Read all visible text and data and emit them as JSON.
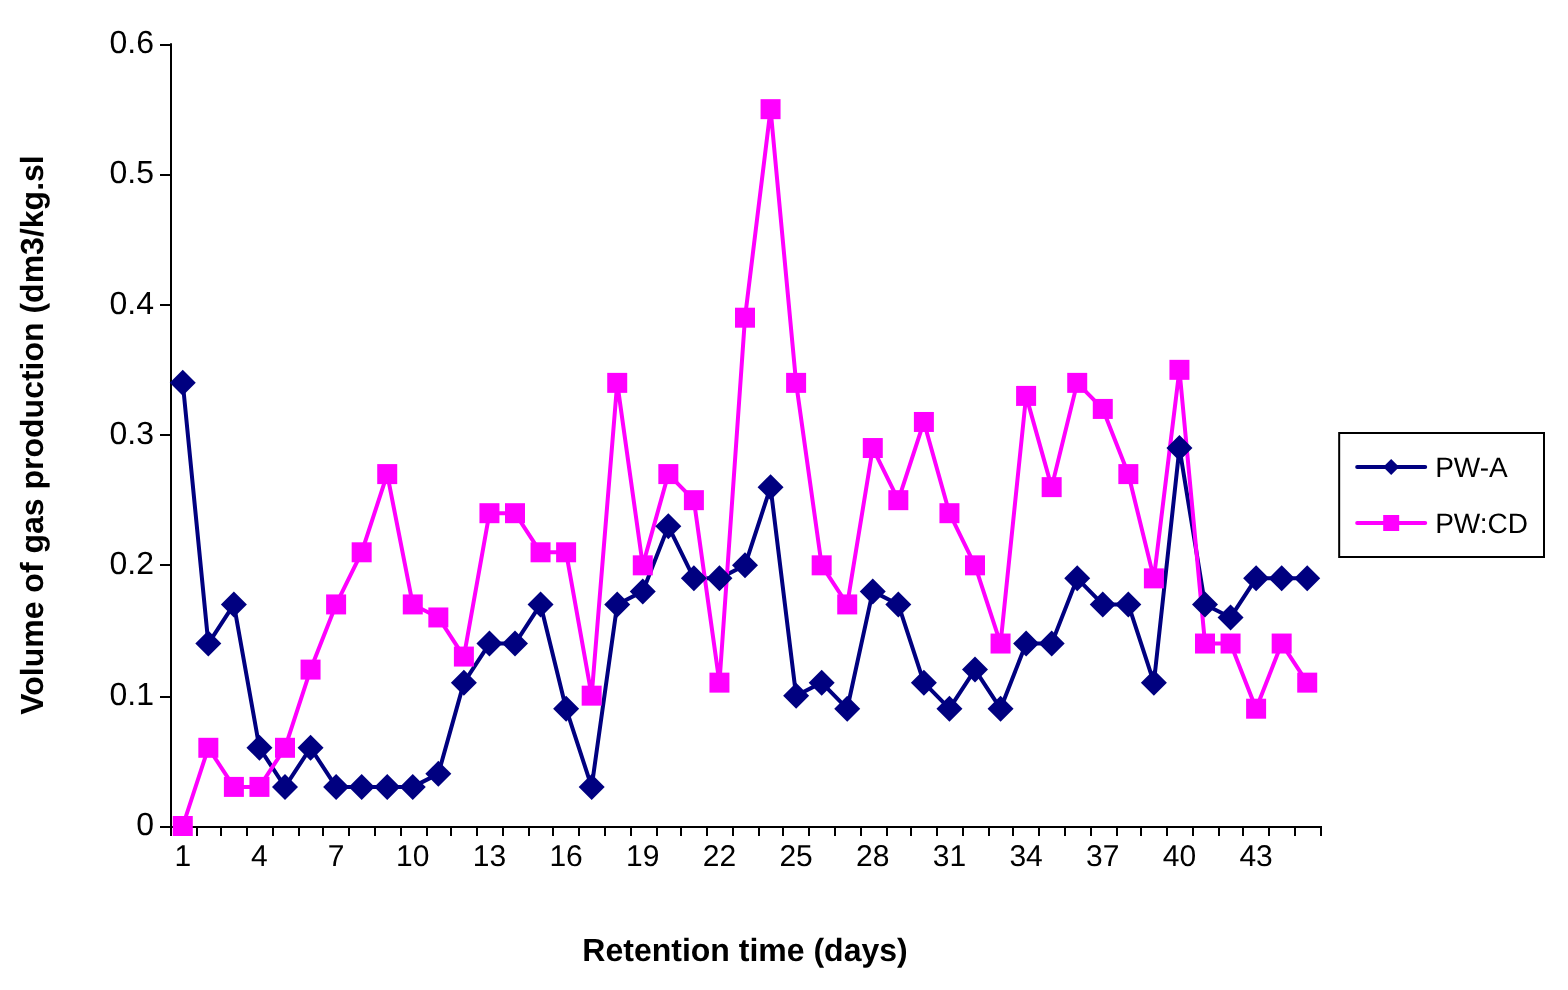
{
  "chart_data": {
    "type": "line",
    "xlabel": "Retention time (days)",
    "ylabel": "Volume of gas production (dm3/kg.sl",
    "categories": [
      "1",
      null,
      null,
      "4",
      null,
      null,
      "7",
      null,
      null,
      "10",
      null,
      null,
      "13",
      null,
      null,
      "16",
      null,
      null,
      "19",
      null,
      null,
      "22",
      null,
      null,
      "25",
      null,
      null,
      "28",
      null,
      null,
      "31",
      null,
      null,
      "34",
      null,
      null,
      "37",
      null,
      null,
      "40",
      null,
      null,
      "43",
      null,
      null
    ],
    "series": [
      {
        "name": "PW-A",
        "color": "#000080",
        "marker": "diamond",
        "values": [
          0.34,
          0.14,
          0.17,
          0.06,
          0.03,
          0.06,
          0.03,
          0.03,
          0.03,
          0.03,
          0.04,
          0.11,
          0.14,
          0.14,
          0.17,
          0.09,
          0.03,
          0.17,
          0.18,
          0.23,
          0.19,
          0.19,
          0.2,
          0.26,
          0.1,
          0.11,
          0.09,
          0.18,
          0.17,
          0.11,
          0.09,
          0.12,
          0.09,
          0.14,
          0.14,
          0.19,
          0.17,
          0.17,
          0.11,
          0.29,
          0.17,
          0.16,
          0.19,
          0.19,
          0.19
        ]
      },
      {
        "name": "PW:CD",
        "color": "#ff00ff",
        "marker": "square",
        "values": [
          0,
          0.06,
          0.03,
          0.03,
          0.06,
          0.12,
          0.17,
          0.21,
          0.27,
          0.17,
          0.16,
          0.13,
          0.24,
          0.24,
          0.21,
          0.21,
          0.1,
          0.34,
          0.2,
          0.27,
          0.25,
          0.11,
          0.39,
          0.55,
          0.34,
          0.2,
          0.17,
          0.29,
          0.25,
          0.31,
          0.24,
          0.2,
          0.14,
          0.33,
          0.26,
          0.34,
          0.32,
          0.27,
          0.19,
          0.35,
          0.14,
          0.14,
          0.09,
          0.14,
          0.11
        ]
      }
    ],
    "ylim": [
      0,
      0.6
    ],
    "yticks": [
      0,
      0.1,
      0.2,
      0.3,
      0.4,
      0.5,
      0.6
    ],
    "grid": false,
    "legend": "right",
    "line_style": "solid"
  }
}
